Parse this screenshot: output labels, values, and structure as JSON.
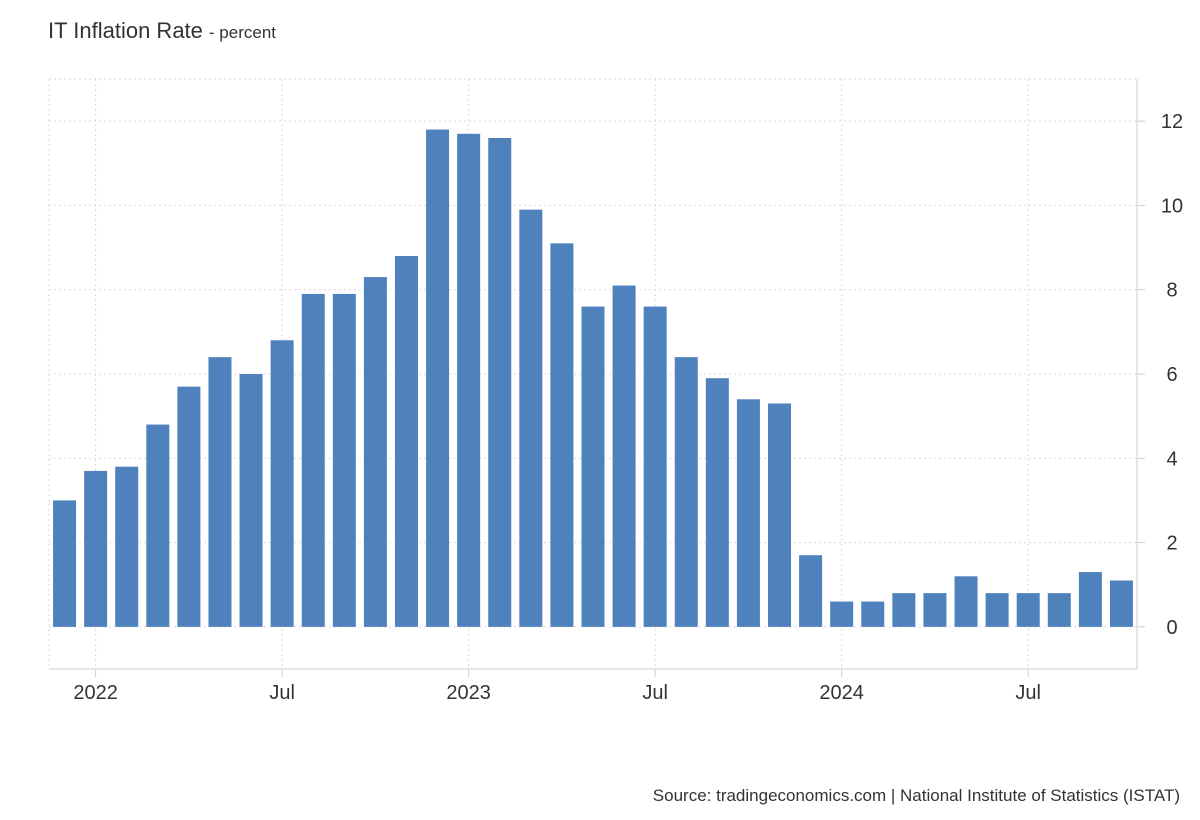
{
  "header": {
    "title": "IT Inflation Rate",
    "subtitle": "- percent"
  },
  "source": "Source: tradingeconomics.com | National Institute of Statistics (ISTAT)",
  "chart_data": {
    "type": "bar",
    "title": "IT Inflation Rate",
    "subtitle": "- percent",
    "xlabel": "",
    "ylabel": "",
    "categories": [
      "2021-12",
      "2022-01",
      "2022-02",
      "2022-03",
      "2022-04",
      "2022-05",
      "2022-06",
      "2022-07",
      "2022-08",
      "2022-09",
      "2022-10",
      "2022-11",
      "2022-12",
      "2023-01",
      "2023-02",
      "2023-03",
      "2023-04",
      "2023-05",
      "2023-06",
      "2023-07",
      "2023-08",
      "2023-09",
      "2023-10",
      "2023-11",
      "2023-12",
      "2024-01",
      "2024-02",
      "2024-03",
      "2024-04",
      "2024-05",
      "2024-06",
      "2024-07",
      "2024-08",
      "2024-09",
      "2024-10"
    ],
    "values": [
      3.0,
      3.7,
      3.8,
      4.8,
      5.7,
      6.4,
      6.0,
      6.8,
      7.9,
      7.9,
      8.3,
      8.8,
      11.8,
      11.7,
      11.6,
      9.9,
      9.1,
      7.6,
      8.1,
      7.6,
      6.4,
      5.9,
      5.4,
      5.3,
      1.7,
      0.6,
      0.6,
      0.8,
      0.8,
      1.2,
      0.8,
      0.8,
      0.8,
      1.3,
      1.1
    ],
    "ylim": [
      -1,
      13
    ],
    "yticks": [
      0,
      2,
      4,
      6,
      8,
      10,
      12
    ],
    "y_axis_side": "right",
    "xticks": [
      {
        "at": "2022-01",
        "label": "2022"
      },
      {
        "at": "2022-07",
        "label": "Jul"
      },
      {
        "at": "2023-01",
        "label": "2023"
      },
      {
        "at": "2023-07",
        "label": "Jul"
      },
      {
        "at": "2024-01",
        "label": "2024"
      },
      {
        "at": "2024-07",
        "label": "Jul"
      }
    ],
    "grid": true,
    "colors": {
      "bar": "#4f81bd",
      "grid": "#d9d9d9",
      "axis": "#cccccc",
      "text": "#333333"
    }
  }
}
